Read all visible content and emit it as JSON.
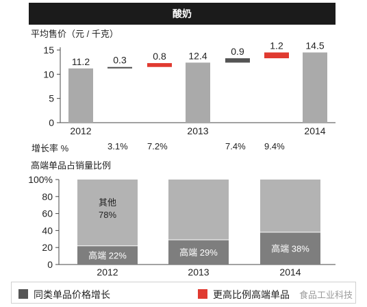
{
  "header": {
    "title": "酸奶"
  },
  "colors": {
    "gray_bar": "#aaaaaa",
    "dark_bar": "#555555",
    "red_bar": "#e03a30",
    "premium": "#7e7e7e",
    "other": "#b3b3b3"
  },
  "chart_data": [
    {
      "type": "bar",
      "title": "平均售价（元 / 千克）",
      "ylim": [
        0,
        15
      ],
      "yticks": [
        0,
        5,
        10,
        15
      ],
      "categories": [
        "2012",
        "",
        "",
        "2013",
        "",
        "",
        "2014"
      ],
      "items": [
        {
          "kind": "total",
          "value": 11.2,
          "label": "11.2",
          "x_label": "2012"
        },
        {
          "kind": "delta_same",
          "value": 0.3,
          "base": 11.2,
          "label": "0.3",
          "growth": "3.1%"
        },
        {
          "kind": "delta_premium",
          "value": 0.8,
          "base": 11.5,
          "label": "0.8",
          "growth": "7.2%"
        },
        {
          "kind": "total",
          "value": 12.4,
          "label": "12.4",
          "x_label": "2013"
        },
        {
          "kind": "delta_same",
          "value": 0.9,
          "base": 12.4,
          "label": "0.9",
          "growth": "7.4%"
        },
        {
          "kind": "delta_premium",
          "value": 1.2,
          "base": 13.3,
          "label": "1.2",
          "growth": "9.4%"
        },
        {
          "kind": "total",
          "value": 14.5,
          "label": "14.5",
          "x_label": "2014"
        }
      ],
      "growth_label": "增长率 %"
    },
    {
      "type": "bar",
      "stacked": true,
      "title": "高端单品占销量比例",
      "ylim": [
        0,
        100
      ],
      "yticks": [
        "0",
        "20",
        "40",
        "60",
        "80",
        "100%"
      ],
      "categories": [
        "2012",
        "2013",
        "2014"
      ],
      "series": [
        {
          "name": "高端",
          "values": [
            22,
            29,
            38
          ],
          "labels": [
            "高端 22%",
            "高端 29%",
            "高端 38%"
          ]
        },
        {
          "name": "其他",
          "values": [
            78,
            71,
            62
          ],
          "labels": [
            "其他\n78%",
            "",
            ""
          ]
        }
      ]
    }
  ],
  "legend": {
    "items": [
      {
        "label": "同类单品价格增长",
        "color": "#555555"
      },
      {
        "label": "更高比例高端单品",
        "color": "#e03a30"
      }
    ],
    "watermark": "食品工业科技"
  }
}
